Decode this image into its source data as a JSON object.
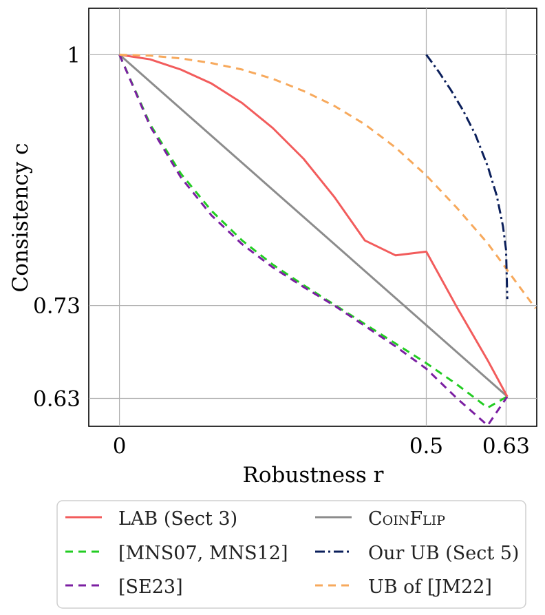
{
  "chart_data": {
    "type": "line",
    "title": "",
    "xlabel": "Robustness r",
    "ylabel": "Consistency c",
    "xlim": [
      -0.05,
      0.68
    ],
    "ylim": [
      0.6,
      1.05
    ],
    "grid": true,
    "x_ticks": [
      {
        "value": 0,
        "label": "0"
      },
      {
        "value": 0.5,
        "label": "0.5"
      },
      {
        "value": 0.63,
        "label": "0.63"
      }
    ],
    "y_ticks": [
      {
        "value": 1,
        "label": "1"
      },
      {
        "value": 0.73,
        "label": "0.73"
      },
      {
        "value": 0.63,
        "label": "0.63"
      }
    ],
    "legend_position": "bottom",
    "series": [
      {
        "name": "LAB (Sect 3)",
        "color": "#f25c5c",
        "dash": "solid",
        "points": [
          [
            0,
            1
          ],
          [
            0.05,
            0.995
          ],
          [
            0.1,
            0.984
          ],
          [
            0.15,
            0.969
          ],
          [
            0.2,
            0.948
          ],
          [
            0.25,
            0.921
          ],
          [
            0.3,
            0.888
          ],
          [
            0.35,
            0.847
          ],
          [
            0.4,
            0.8
          ],
          [
            0.45,
            0.784
          ],
          [
            0.5,
            0.788
          ],
          [
            0.55,
            0.728
          ],
          [
            0.6,
            0.671
          ],
          [
            0.632,
            0.632
          ]
        ]
      },
      {
        "name": "[MNS07, MNS12]",
        "color": "#22cc22",
        "dash": "dashed",
        "points": [
          [
            0,
            1
          ],
          [
            0.05,
            0.925
          ],
          [
            0.1,
            0.872
          ],
          [
            0.15,
            0.832
          ],
          [
            0.2,
            0.8
          ],
          [
            0.25,
            0.774
          ],
          [
            0.3,
            0.752
          ],
          [
            0.35,
            0.731
          ],
          [
            0.4,
            0.71
          ],
          [
            0.45,
            0.689
          ],
          [
            0.5,
            0.668
          ],
          [
            0.55,
            0.645
          ],
          [
            0.6,
            0.62
          ],
          [
            0.632,
            0.632
          ]
        ]
      },
      {
        "name": "[SE23]",
        "color": "#7b1fa2",
        "dash": "dashed",
        "points": [
          [
            0,
            1
          ],
          [
            0.05,
            0.923
          ],
          [
            0.1,
            0.868
          ],
          [
            0.15,
            0.827
          ],
          [
            0.2,
            0.796
          ],
          [
            0.25,
            0.771
          ],
          [
            0.3,
            0.75
          ],
          [
            0.35,
            0.73
          ],
          [
            0.4,
            0.708
          ],
          [
            0.45,
            0.686
          ],
          [
            0.5,
            0.662
          ],
          [
            0.55,
            0.63
          ],
          [
            0.6,
            0.601
          ],
          [
            0.632,
            0.632
          ]
        ]
      },
      {
        "name": "CoinFlip",
        "color": "#8c8c8c",
        "dash": "solid",
        "points": [
          [
            0,
            1
          ],
          [
            0.632,
            0.632
          ]
        ]
      },
      {
        "name": "Our UB (Sect 5)",
        "color": "#0b1f5b",
        "dash": "dashdot",
        "points": [
          [
            0.5,
            1
          ],
          [
            0.52,
            0.982
          ],
          [
            0.54,
            0.962
          ],
          [
            0.56,
            0.94
          ],
          [
            0.58,
            0.914
          ],
          [
            0.6,
            0.88
          ],
          [
            0.615,
            0.848
          ],
          [
            0.625,
            0.815
          ],
          [
            0.63,
            0.79
          ],
          [
            0.632,
            0.737
          ]
        ]
      },
      {
        "name": "UB of [JM22]",
        "color": "#f7a95c",
        "dash": "dashed",
        "points": [
          [
            0,
            1
          ],
          [
            0.05,
            0.999
          ],
          [
            0.1,
            0.996
          ],
          [
            0.15,
            0.991
          ],
          [
            0.2,
            0.984
          ],
          [
            0.25,
            0.974
          ],
          [
            0.3,
            0.961
          ],
          [
            0.35,
            0.945
          ],
          [
            0.4,
            0.925
          ],
          [
            0.45,
            0.9
          ],
          [
            0.5,
            0.87
          ],
          [
            0.55,
            0.835
          ],
          [
            0.6,
            0.797
          ],
          [
            0.65,
            0.752
          ],
          [
            0.678,
            0.727
          ]
        ]
      }
    ]
  },
  "legend": {
    "col1": [
      {
        "key": "lab",
        "title_main": "LAB",
        "title_rest": " (Sect 3)"
      },
      {
        "key": "mns",
        "title_main": "[MNS07, MNS12]",
        "title_rest": ""
      },
      {
        "key": "se23",
        "title_main": "[SE23]",
        "title_rest": ""
      }
    ],
    "col2": [
      {
        "key": "coinflip",
        "title_main": "CoinFlip",
        "title_rest": ""
      },
      {
        "key": "ourub",
        "title_main": "Our UB (Sect 5)",
        "title_rest": ""
      },
      {
        "key": "jm22",
        "title_main": "UB of [JM22]",
        "title_rest": ""
      }
    ]
  }
}
